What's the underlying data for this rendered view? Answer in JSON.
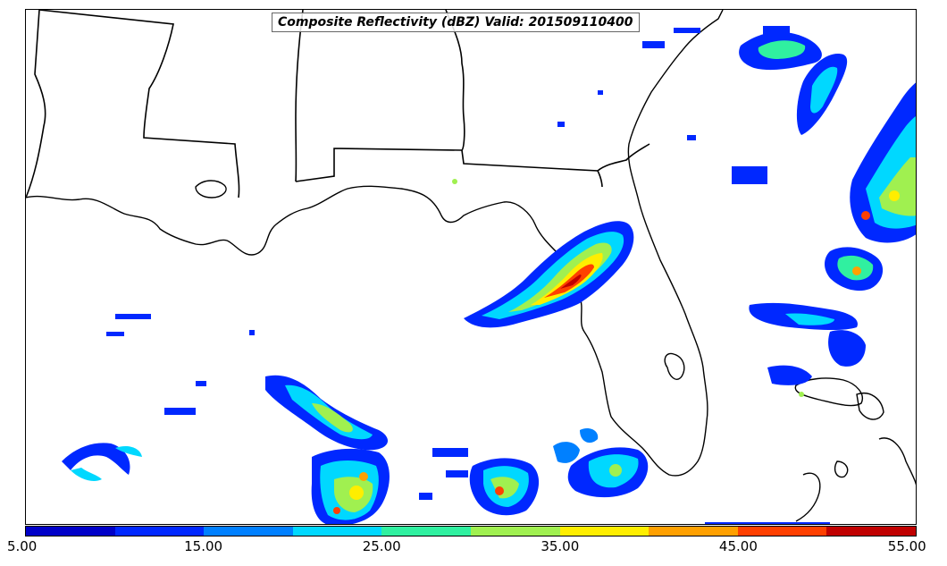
{
  "map": {
    "title": "Composite Reflectivity (dBZ) Valid: 201509110400"
  },
  "colorbar": {
    "colors": [
      "#0000c8",
      "#0028ff",
      "#0080ff",
      "#00d8ff",
      "#30f0a0",
      "#a0f050",
      "#ffee00",
      "#ffa000",
      "#ff4000",
      "#c00000"
    ],
    "ticks": [
      "5.00",
      "15.00",
      "25.00",
      "35.00",
      "45.00",
      "55.00"
    ]
  }
}
